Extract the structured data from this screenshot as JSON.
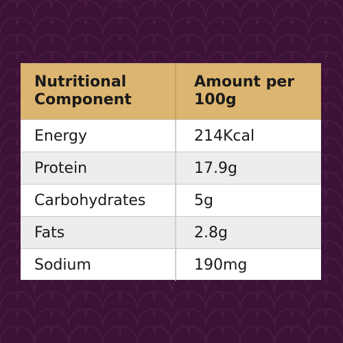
{
  "colors": {
    "background": "#3d1238",
    "header_background": "#dcb570",
    "alt_row_background": "#ededed",
    "row_background": "#ffffff"
  },
  "table": {
    "headers": [
      "Nutritional Component",
      "Amount per 100g"
    ],
    "rows": [
      {
        "component": "Energy",
        "amount": "214Kcal"
      },
      {
        "component": "Protein",
        "amount": "17.9g"
      },
      {
        "component": "Carbohydrates",
        "amount": "5g"
      },
      {
        "component": "Fats",
        "amount": "2.8g"
      },
      {
        "component": "Sodium",
        "amount": "190mg"
      }
    ]
  }
}
